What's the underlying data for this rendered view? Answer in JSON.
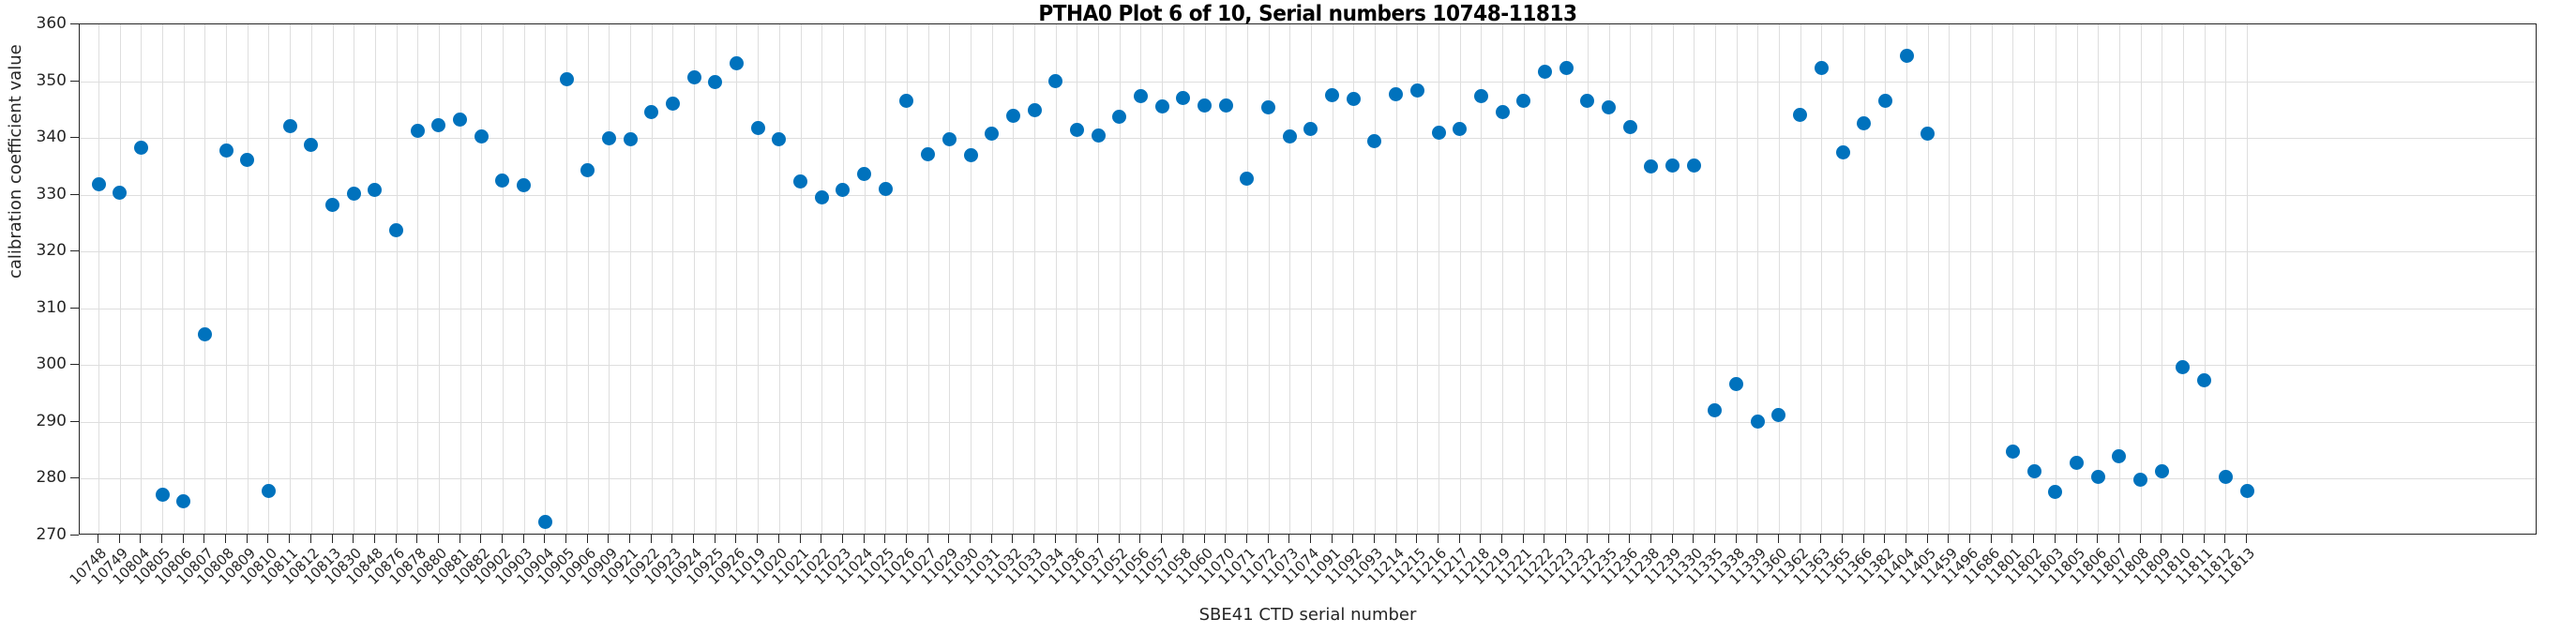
{
  "title": "PTHA0 Plot 6 of 10, Serial numbers 10748-11813",
  "xlabel": "SBE41 CTD serial number",
  "ylabel": "calibration coefficient value",
  "colors": {
    "marker": "#0072BD",
    "grid": "#dedede",
    "axis": "#262626",
    "title": "#000000",
    "background": "#ffffff"
  },
  "chart_data": {
    "type": "scatter",
    "title": "PTHA0 Plot 6 of 10, Serial numbers 10748-11813",
    "xlabel": "SBE41 CTD serial number",
    "ylabel": "calibration coefficient value",
    "ylim": [
      270,
      360
    ],
    "yticks": [
      270,
      280,
      290,
      300,
      310,
      320,
      330,
      340,
      350,
      360
    ],
    "grid": true,
    "x_tick_rotation": -45,
    "x_categories": [
      "10748",
      "10749",
      "10804",
      "10805",
      "10806",
      "10807",
      "10808",
      "10809",
      "10810",
      "10811",
      "10812",
      "10813",
      "10830",
      "10848",
      "10876",
      "10878",
      "10880",
      "10881",
      "10882",
      "10902",
      "10903",
      "10904",
      "10905",
      "10906",
      "10909",
      "10921",
      "10922",
      "10923",
      "10924",
      "10925",
      "10926",
      "11019",
      "11020",
      "11021",
      "11022",
      "11023",
      "11024",
      "11025",
      "11026",
      "11027",
      "11029",
      "11030",
      "11031",
      "11032",
      "11033",
      "11034",
      "11036",
      "11037",
      "11052",
      "11056",
      "11057",
      "11058",
      "11060",
      "11070",
      "11071",
      "11072",
      "11073",
      "11074",
      "11091",
      "11092",
      "11093",
      "11214",
      "11215",
      "11216",
      "11217",
      "11218",
      "11219",
      "11221",
      "11222",
      "11223",
      "11232",
      "11235",
      "11236",
      "11238",
      "11239",
      "11330",
      "11335",
      "11338",
      "11339",
      "11360",
      "11362",
      "11363",
      "11365",
      "11366",
      "11382",
      "11404",
      "11405",
      "11459",
      "11496",
      "11686",
      "11801",
      "11802",
      "11803",
      "11805",
      "11806",
      "11807",
      "11808",
      "11809",
      "11810",
      "11811",
      "11812",
      "11813"
    ],
    "values": [
      331.8,
      330.4,
      338.3,
      277.2,
      276.0,
      305.4,
      337.8,
      336.2,
      277.9,
      342.1,
      338.7,
      328.2,
      330.2,
      330.8,
      323.8,
      341.2,
      342.3,
      343.3,
      340.2,
      332.5,
      331.6,
      272.4,
      350.3,
      334.3,
      339.9,
      339.7,
      344.5,
      346.0,
      350.7,
      349.8,
      353.1,
      341.7,
      339.8,
      332.3,
      329.5,
      330.8,
      333.7,
      331.0,
      346.5,
      337.2,
      339.8,
      337.0,
      340.7,
      343.9,
      344.9,
      350.0,
      341.5,
      340.5,
      343.7,
      347.3,
      345.6,
      347.0,
      345.7,
      345.7,
      332.9,
      345.4,
      340.3,
      341.6,
      347.6,
      346.9,
      339.5,
      347.7,
      348.3,
      340.9,
      341.6,
      347.3,
      344.5,
      346.5,
      351.7,
      352.3,
      346.6,
      345.4,
      342.0,
      335.0,
      335.2,
      335.1,
      292.1,
      296.6,
      290.0,
      291.3,
      344.1,
      352.4,
      337.4,
      342.6,
      346.5,
      354.5,
      340.8,
      null,
      null,
      null,
      284.7,
      281.3,
      277.6,
      282.8,
      280.4,
      283.9,
      279.9,
      281.3,
      299.7,
      297.4,
      280.4,
      277.9
    ]
  }
}
